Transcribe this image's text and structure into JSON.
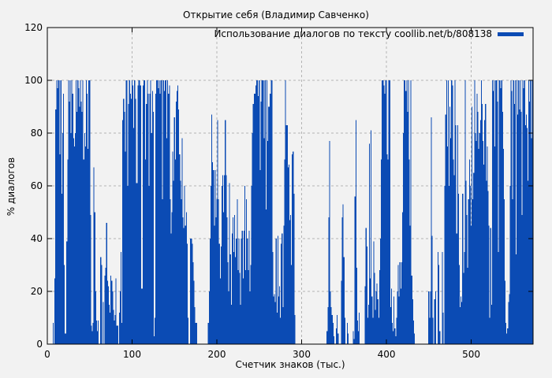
{
  "title": "Открытие себя (Владимир Савченко)",
  "legend": {
    "label": "Использование диалогов по тексту coollib.net/b/808138",
    "color": "#0b4bb4"
  },
  "axes": {
    "x": {
      "label": "Счетчик знаков (тыс.)",
      "ticks": [
        0,
        100,
        200,
        300,
        400,
        500
      ]
    },
    "y": {
      "label": "% диалогов",
      "ticks": [
        0,
        20,
        40,
        60,
        80,
        100,
        120
      ]
    }
  },
  "colors": {
    "background": "#f2f2f2",
    "bar": "#0b4bb4",
    "grid": "#b4b4b4",
    "axis": "#000000"
  },
  "chart_data": {
    "type": "bar",
    "title": "Открытие себя (Владимир Савченко)",
    "xlabel": "Счетчик знаков (тыс.)",
    "ylabel": "% диалогов",
    "xlim": [
      0,
      573
    ],
    "ylim": [
      0,
      120
    ],
    "xticks": [
      0,
      100,
      200,
      300,
      400,
      500
    ],
    "yticks": [
      0,
      20,
      40,
      60,
      80,
      100,
      120
    ],
    "grid": true,
    "legend_position": "top-right",
    "series": [
      {
        "name": "Использование диалогов по тексту coollib.net/b/808138",
        "x_start": 0,
        "x_step": 1,
        "values": [
          0,
          0,
          0,
          0,
          0,
          0,
          0,
          8,
          0,
          25,
          89,
          100,
          97,
          100,
          100,
          72,
          100,
          57,
          80,
          95,
          30,
          4,
          4,
          39,
          70,
          100,
          92,
          100,
          80,
          100,
          95,
          78,
          75,
          80,
          100,
          88,
          100,
          97,
          90,
          100,
          92,
          88,
          100,
          70,
          80,
          75,
          100,
          95,
          74,
          100,
          100,
          49,
          7,
          5,
          8,
          67,
          50,
          20,
          9,
          5,
          9,
          0,
          0,
          33,
          30,
          0,
          16,
          0,
          26,
          29,
          46,
          24,
          22,
          15,
          12,
          26,
          24,
          20,
          13,
          9,
          11,
          25,
          7,
          7,
          0,
          12,
          20,
          35,
          8,
          85,
          93,
          88,
          73,
          100,
          100,
          60,
          91,
          100,
          95,
          93,
          100,
          98,
          82,
          100,
          93,
          61,
          61,
          98,
          100,
          100,
          98,
          21,
          21,
          98,
          100,
          100,
          70,
          91,
          100,
          95,
          60,
          95,
          100,
          80,
          96,
          88,
          3,
          10,
          95,
          100,
          100,
          97,
          100,
          95,
          100,
          100,
          55,
          100,
          96,
          100,
          100,
          78,
          100,
          95,
          98,
          55,
          42,
          50,
          73,
          62,
          86,
          70,
          92,
          96,
          98,
          89,
          72,
          62,
          55,
          78,
          48,
          44,
          60,
          45,
          50,
          38,
          10,
          0,
          0,
          40,
          40,
          38,
          31,
          24,
          14,
          8,
          8,
          0,
          0,
          0,
          0,
          0,
          0,
          0,
          0,
          0,
          0,
          0,
          0,
          0,
          8,
          20,
          40,
          60,
          87,
          69,
          66,
          45,
          66,
          48,
          55,
          85,
          55,
          38,
          25,
          37,
          60,
          64,
          50,
          64,
          85,
          64,
          48,
          31,
          20,
          61,
          34,
          15,
          42,
          48,
          35,
          49,
          33,
          40,
          55,
          28,
          40,
          27,
          15,
          40,
          43,
          25,
          43,
          60,
          28,
          55,
          40,
          28,
          43,
          20,
          30,
          60,
          80,
          91,
          95,
          95,
          98,
          100,
          100,
          94,
          100,
          66,
          92,
          100,
          100,
          100,
          78,
          100,
          51,
          100,
          77,
          90,
          90,
          95,
          100,
          100,
          35,
          18,
          19,
          16,
          40,
          12,
          41,
          18,
          22,
          10,
          38,
          42,
          14,
          45,
          70,
          100,
          83,
          83,
          67,
          68,
          47,
          49,
          30,
          72,
          73,
          57,
          11,
          0,
          0,
          0,
          0,
          0,
          0,
          0,
          0,
          0,
          0,
          0,
          0,
          0,
          0,
          0,
          0,
          0,
          0,
          0,
          0,
          0,
          0,
          0,
          0,
          0,
          0,
          0,
          0,
          0,
          0,
          0,
          0,
          0,
          0,
          0,
          0,
          0,
          5,
          14,
          48,
          77,
          20,
          14,
          11,
          8,
          3,
          0,
          0,
          6,
          11,
          4,
          0,
          0,
          0,
          24,
          48,
          53,
          33,
          10,
          0,
          0,
          8,
          4,
          0,
          0,
          0,
          0,
          0,
          5,
          2,
          56,
          85,
          29,
          9,
          5,
          12,
          0,
          0,
          0,
          0,
          0,
          0,
          22,
          44,
          37,
          10,
          15,
          76,
          25,
          81,
          18,
          10,
          39,
          27,
          13,
          20,
          23,
          17,
          10,
          28,
          40,
          70,
          100,
          100,
          98,
          95,
          100,
          100,
          72,
          70,
          100,
          100,
          14,
          21,
          8,
          5,
          18,
          6,
          3,
          10,
          20,
          30,
          18,
          31,
          21,
          31,
          50,
          80,
          100,
          100,
          96,
          100,
          88,
          100,
          70,
          45,
          100,
          26,
          17,
          9,
          4,
          0,
          0,
          0,
          0,
          0,
          0,
          0,
          0,
          0,
          0,
          0,
          0,
          0,
          0,
          0,
          0,
          20,
          10,
          20,
          86,
          41,
          10,
          0,
          17,
          20,
          0,
          0,
          35,
          30,
          5,
          0,
          0,
          35,
          12,
          0,
          60,
          87,
          100,
          75,
          100,
          60,
          90,
          78,
          100,
          98,
          70,
          64,
          100,
          83,
          42,
          83,
          57,
          30,
          14,
          18,
          16,
          57,
          27,
          35,
          100,
          62,
          49,
          29,
          55,
          70,
          60,
          45,
          90,
          55,
          65,
          100,
          80,
          77,
          95,
          88,
          74,
          80,
          85,
          100,
          91,
          77,
          68,
          85,
          91,
          62,
          75,
          58,
          45,
          10,
          44,
          15,
          100,
          96,
          100,
          75,
          100,
          100,
          92,
          35,
          100,
          100,
          97,
          100,
          88,
          74,
          55,
          24,
          8,
          4,
          6,
          16,
          19,
          60,
          100,
          96,
          55,
          100,
          91,
          100,
          34,
          100,
          87,
          100,
          89,
          100,
          88,
          49,
          100,
          97,
          100,
          83,
          87,
          82,
          62,
          100,
          92,
          100,
          78,
          100,
          96
        ]
      }
    ]
  }
}
